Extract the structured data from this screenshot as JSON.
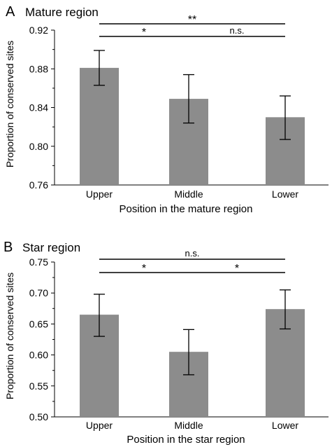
{
  "bar_color": "#8c8c8c",
  "chart_data": [
    {
      "type": "bar",
      "panel_label": "A",
      "title": "Mature region",
      "xlabel": "Position in the mature region",
      "ylabel": "Proportion of conserved sites",
      "categories": [
        "Upper",
        "Middle",
        "Lower"
      ],
      "values": [
        0.881,
        0.849,
        0.83
      ],
      "error_low": [
        0.863,
        0.824,
        0.807
      ],
      "error_high": [
        0.899,
        0.874,
        0.852
      ],
      "ylim": [
        0.76,
        0.92
      ],
      "yticks": [
        0.76,
        0.8,
        0.84,
        0.88,
        0.92
      ],
      "ytick_labels": [
        "0.76",
        "0.80",
        "0.84",
        "0.88",
        "0.92"
      ],
      "significance": [
        {
          "from": "Upper",
          "to": "Lower",
          "label": "**"
        },
        {
          "from": "Upper",
          "to": "Middle",
          "label": "*"
        },
        {
          "from": "Middle",
          "to": "Lower",
          "label": "n.s."
        }
      ]
    },
    {
      "type": "bar",
      "panel_label": "B",
      "title": "Star region",
      "xlabel": "Position in the star region",
      "ylabel": "Proportion of conserved sites",
      "categories": [
        "Upper",
        "Middle",
        "Lower"
      ],
      "values": [
        0.665,
        0.605,
        0.674
      ],
      "error_low": [
        0.63,
        0.568,
        0.642
      ],
      "error_high": [
        0.698,
        0.641,
        0.705
      ],
      "ylim": [
        0.5,
        0.75
      ],
      "yticks": [
        0.5,
        0.55,
        0.6,
        0.65,
        0.7,
        0.75
      ],
      "ytick_labels": [
        "0.50",
        "0.55",
        "0.60",
        "0.65",
        "0.70",
        "0.75"
      ],
      "significance": [
        {
          "from": "Upper",
          "to": "Lower",
          "label": "n.s."
        },
        {
          "from": "Upper",
          "to": "Middle",
          "label": "*"
        },
        {
          "from": "Middle",
          "to": "Lower",
          "label": "*"
        }
      ]
    }
  ]
}
